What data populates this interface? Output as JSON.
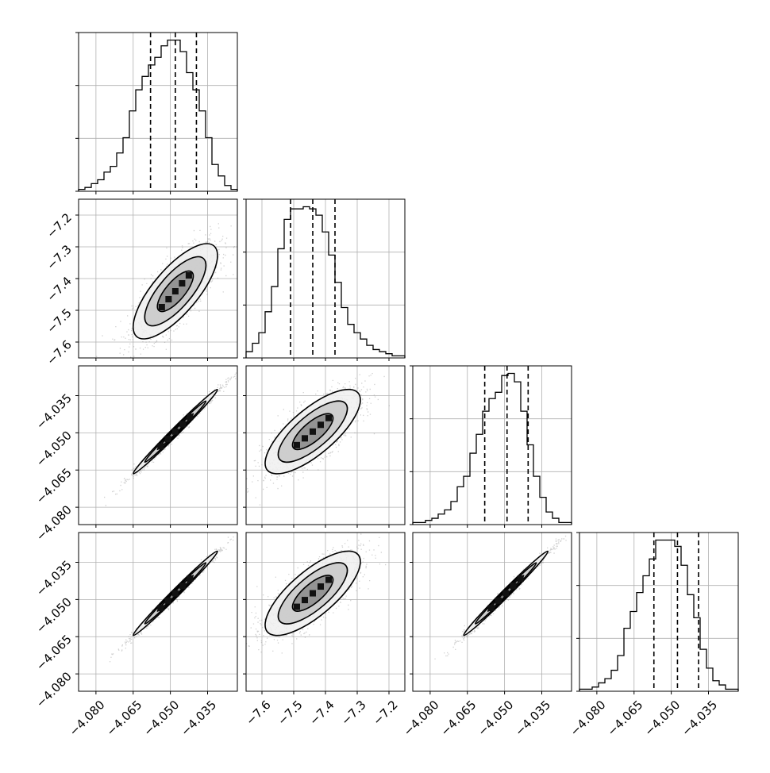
{
  "chart_data": {
    "type": "corner",
    "grid": true,
    "tick_labels": {
      "p1": [
        "−4.080",
        "−4.065",
        "−4.050",
        "−4.035"
      ],
      "p2": [
        "−7.6",
        "−7.5",
        "−7.4",
        "−7.3",
        "−7.2"
      ],
      "p3": [
        "−4.080",
        "−4.065",
        "−4.050",
        "−4.035"
      ],
      "p4": [
        "−4.080",
        "−4.065",
        "−4.050",
        "−4.035"
      ]
    },
    "params": [
      {
        "id": "p1",
        "range": [
          -4.087,
          -4.023
        ],
        "ticks": [
          -4.08,
          -4.065,
          -4.05,
          -4.035
        ],
        "quantiles": [
          -4.058,
          -4.048,
          -4.0395
        ]
      },
      {
        "id": "p2",
        "range": [
          -7.65,
          -7.15
        ],
        "ticks": [
          -7.6,
          -7.5,
          -7.4,
          -7.3,
          -7.2
        ],
        "quantiles": [
          -7.51,
          -7.44,
          -7.37
        ]
      },
      {
        "id": "p3",
        "range": [
          -4.087,
          -4.023
        ],
        "ticks": [
          -4.08,
          -4.065,
          -4.05,
          -4.035
        ],
        "quantiles": [
          -4.058,
          -4.049,
          -4.0405
        ]
      },
      {
        "id": "p4",
        "range": [
          -4.087,
          -4.023
        ],
        "ticks": [
          -4.08,
          -4.065,
          -4.05,
          -4.035
        ],
        "quantiles": [
          -4.057,
          -4.0475,
          -4.039
        ]
      }
    ],
    "histograms": [
      {
        "param": "p1",
        "counts": [
          1,
          2,
          4,
          6,
          10,
          13,
          20,
          28,
          42,
          53,
          60,
          66,
          70,
          76,
          79,
          79,
          73,
          62,
          53,
          42,
          28,
          14,
          8,
          3,
          1
        ]
      },
      {
        "param": "p2",
        "counts": [
          3,
          7,
          12,
          22,
          34,
          52,
          66,
          71,
          71,
          72,
          71,
          68,
          60,
          49,
          36,
          24,
          16,
          12,
          9,
          6,
          4,
          3,
          2,
          1,
          1
        ]
      },
      {
        "param": "p3",
        "counts": [
          1,
          1,
          2,
          3,
          5,
          7,
          11,
          18,
          23,
          34,
          43,
          54,
          60,
          63,
          71,
          72,
          68,
          54,
          38,
          23,
          13,
          6,
          3,
          1,
          1
        ]
      },
      {
        "param": "p4",
        "counts": [
          1,
          1,
          2,
          4,
          6,
          10,
          17,
          30,
          38,
          47,
          55,
          63,
          72,
          72,
          72,
          69,
          60,
          46,
          35,
          20,
          11,
          5,
          3,
          1,
          1
        ]
      }
    ],
    "scatter_2d": [
      {
        "x": "p1",
        "y": "p2",
        "mean": [
          -4.048,
          -7.44
        ],
        "sd": [
          0.0085,
          0.075
        ],
        "corr": 0.75,
        "levels": [
          0.04,
          0.1,
          0.2
        ]
      },
      {
        "x": "p1",
        "y": "p3",
        "mean": [
          -4.048,
          -4.0495
        ],
        "sd": [
          0.0085,
          0.0085
        ],
        "corr": 0.992,
        "levels": [
          0.04,
          0.1,
          0.2
        ]
      },
      {
        "x": "p2",
        "y": "p3",
        "mean": [
          -7.44,
          -4.0495
        ],
        "sd": [
          0.075,
          0.0085
        ],
        "corr": 0.75,
        "levels": [
          0.04,
          0.1,
          0.2
        ]
      },
      {
        "x": "p1",
        "y": "p4",
        "mean": [
          -4.048,
          -4.0475
        ],
        "sd": [
          0.0085,
          0.0085
        ],
        "corr": 0.992,
        "levels": [
          0.04,
          0.1,
          0.2
        ]
      },
      {
        "x": "p2",
        "y": "p4",
        "mean": [
          -7.44,
          -4.0475
        ],
        "sd": [
          0.075,
          0.0085
        ],
        "corr": 0.75,
        "levels": [
          0.04,
          0.1,
          0.2
        ]
      },
      {
        "x": "p3",
        "y": "p4",
        "mean": [
          -4.0495,
          -4.0475
        ],
        "sd": [
          0.0085,
          0.0085
        ],
        "corr": 0.992,
        "levels": [
          0.04,
          0.1,
          0.2
        ]
      }
    ]
  }
}
